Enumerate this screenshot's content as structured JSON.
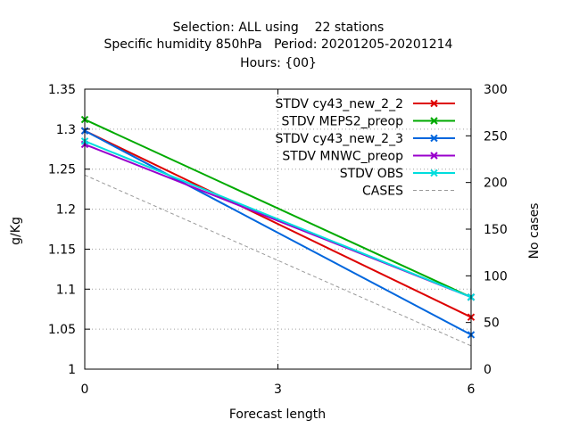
{
  "chart_data": {
    "type": "line",
    "title_lines": [
      "Selection: ALL using    22 stations",
      "Specific humidity 850hPa   Period: 20201205-20201214",
      "Hours: {00}"
    ],
    "xlabel": "Forecast length",
    "ylabel": "g/Kg",
    "y2label": "No cases",
    "x": [
      0,
      3,
      6
    ],
    "x_ticks": [
      "0",
      "3",
      "6"
    ],
    "xlim": [
      0,
      6
    ],
    "ylim": [
      1,
      1.35
    ],
    "y_ticks": [
      "1",
      "1.05",
      "1.1",
      "1.15",
      "1.2",
      "1.25",
      "1.3",
      "1.35"
    ],
    "y2lim": [
      0,
      300
    ],
    "y2_ticks": [
      "0",
      "50",
      "100",
      "150",
      "200",
      "250",
      "300"
    ],
    "grid": true,
    "legend_position": "top-right",
    "series": [
      {
        "name": "STDV cy43_new_2_2",
        "color": "#dd0000",
        "marker": "x",
        "axis": "y",
        "values": [
          1.298,
          null,
          1.065
        ]
      },
      {
        "name": "STDV MEPS2_preop",
        "color": "#00aa00",
        "marker": "x",
        "axis": "y",
        "values": [
          1.312,
          null,
          1.09
        ]
      },
      {
        "name": "STDV cy43_new_2_3",
        "color": "#0066dd",
        "marker": "x",
        "axis": "y",
        "values": [
          1.298,
          null,
          1.043
        ]
      },
      {
        "name": "STDV MNWC_preop",
        "color": "#9900cc",
        "marker": "x",
        "axis": "y",
        "values": [
          1.281,
          null,
          1.09
        ]
      },
      {
        "name": "STDV OBS",
        "color": "#00dddd",
        "marker": "x",
        "axis": "y",
        "values": [
          1.285,
          null,
          1.09
        ]
      },
      {
        "name": "CASES",
        "color": "#999999",
        "marker": "none",
        "dash": true,
        "axis": "y2",
        "values": [
          208,
          null,
          25
        ]
      }
    ]
  }
}
